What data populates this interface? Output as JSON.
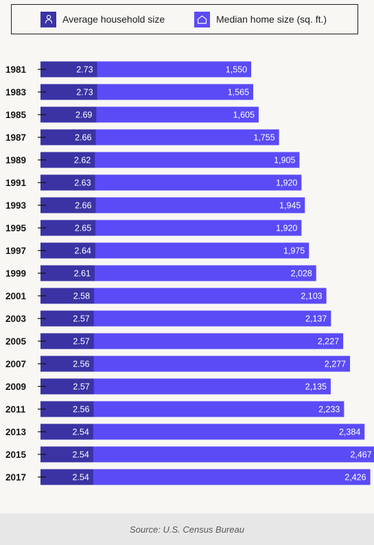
{
  "legend": {
    "household_label": "Average household size",
    "household_icon": "person-icon",
    "home_label": "Median home size (sq. ft.)",
    "home_icon": "house-icon"
  },
  "colors": {
    "household": "#3b33a4",
    "home": "#5a4bf6",
    "background": "#f8f7f4",
    "footer": "#e7e7e7"
  },
  "chart_data": {
    "type": "bar",
    "orientation": "horizontal",
    "stacked": true,
    "categories": [
      "1981",
      "1983",
      "1985",
      "1987",
      "1989",
      "1991",
      "1993",
      "1995",
      "1997",
      "1999",
      "2001",
      "2003",
      "2005",
      "2007",
      "2009",
      "2011",
      "2013",
      "2015",
      "2017"
    ],
    "series": [
      {
        "name": "Average household size",
        "values": [
          2.73,
          2.73,
          2.69,
          2.66,
          2.62,
          2.63,
          2.66,
          2.65,
          2.64,
          2.61,
          2.58,
          2.57,
          2.57,
          2.56,
          2.57,
          2.56,
          2.54,
          2.54,
          2.54
        ],
        "labels": [
          "2.73",
          "2.73",
          "2.69",
          "2.66",
          "2.62",
          "2.63",
          "2.66",
          "2.65",
          "2.64",
          "2.61",
          "2.58",
          "2.57",
          "2.57",
          "2.56",
          "2.57",
          "2.56",
          "2.54",
          "2.54",
          "2.54"
        ]
      },
      {
        "name": "Median home size (sq. ft.)",
        "values": [
          1550,
          1565,
          1605,
          1755,
          1905,
          1920,
          1945,
          1920,
          1975,
          2028,
          2103,
          2137,
          2227,
          2277,
          2135,
          2233,
          2384,
          2467,
          2426
        ],
        "labels": [
          "1,550",
          "1,565",
          "1,605",
          "1,755",
          "1,905",
          "1,920",
          "1,945",
          "1,920",
          "1,975",
          "2,028",
          "2,103",
          "2,137",
          "2,227",
          "2,277",
          "2,135",
          "2,233",
          "2,384",
          "2,467",
          "2,426"
        ]
      }
    ],
    "legend_position": "top",
    "grid": false
  },
  "footer": {
    "source": "Source: U.S. Census Bureau"
  }
}
